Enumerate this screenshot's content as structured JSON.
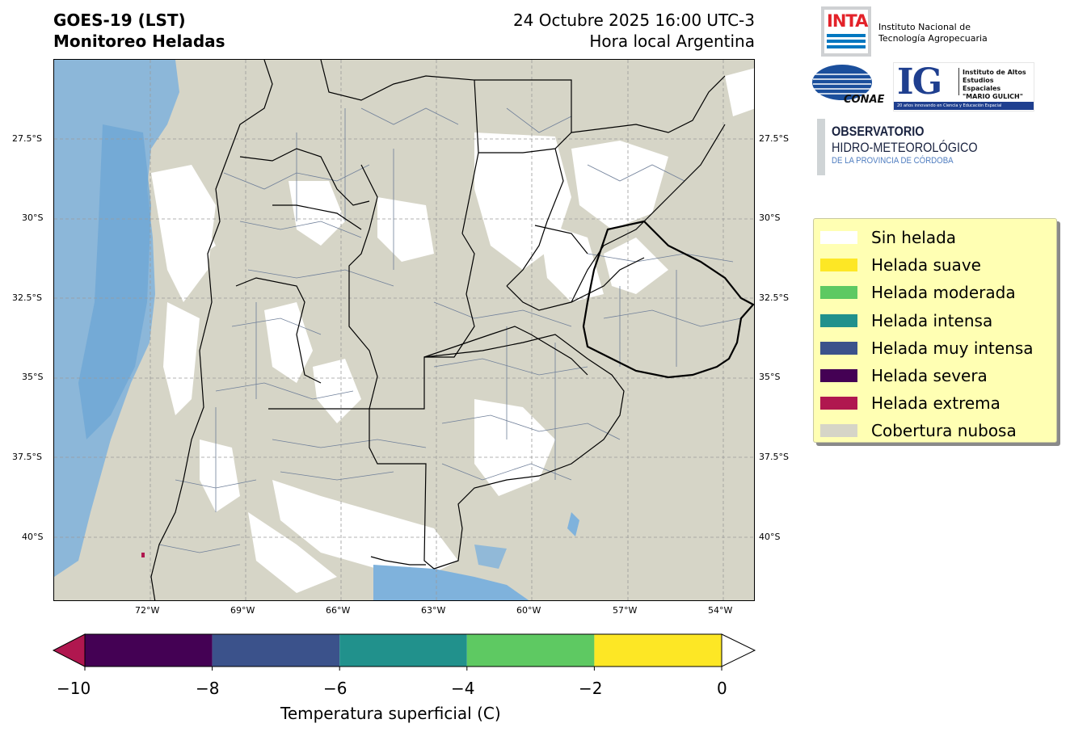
{
  "header": {
    "title_line1": "GOES-19 (LST)",
    "title_line2": "Monitoreo Heladas",
    "date_line": "24 Octubre 2025 16:00 UTC-3",
    "local_line": "Hora local Argentina"
  },
  "map": {
    "lat_ticks": [
      "27.5°S",
      "30°S",
      "32.5°S",
      "35°S",
      "37.5°S",
      "40°S"
    ],
    "lon_ticks": [
      "72°W",
      "69°W",
      "66°W",
      "63°W",
      "60°W",
      "57°W",
      "54°W"
    ],
    "colors": {
      "cloud": "#d6d5c7",
      "no_frost": "#ffffff",
      "water": "#7fb2dc",
      "border": "#000000",
      "department": "#6f7f99"
    }
  },
  "logos": {
    "inta_abbr": "INTA",
    "inta_name_line1": "Instituto Nacional de",
    "inta_name_line2": "Tecnología Agropecuaria",
    "conae": "CONAE",
    "ig_abbr": "IG",
    "ig_line1": "Instituto de Altos",
    "ig_line2": "Estudios Espaciales",
    "ig_line3": "\"MARIO GULICH\"",
    "ig_tagline": "20 años innovando en Ciencia y Educación Espacial",
    "obs_line1": "OBSERVATORIO",
    "obs_line2": "HIDRO-METEOROLÓGICO",
    "obs_line3": "DE LA PROVINCIA DE CÓRDOBA"
  },
  "legend": {
    "items": [
      {
        "label": "Sin helada",
        "color": "#ffffff"
      },
      {
        "label": "Helada suave",
        "color": "#fde725"
      },
      {
        "label": "Helada moderada",
        "color": "#5ec962"
      },
      {
        "label": "Helada intensa",
        "color": "#21918c"
      },
      {
        "label": "Helada muy intensa",
        "color": "#3b528b"
      },
      {
        "label": "Helada severa",
        "color": "#440154"
      },
      {
        "label": "Helada extrema",
        "color": "#b0174f"
      },
      {
        "label": "Cobertura nubosa",
        "color": "#d6d5c7"
      }
    ]
  },
  "colorbar": {
    "label": "Temperatura superficial (C)",
    "ticks": [
      "−10",
      "−8",
      "−6",
      "−4",
      "−2",
      "0"
    ],
    "bins": [
      {
        "from": -10,
        "to": -8,
        "color": "#440154"
      },
      {
        "from": -8,
        "to": -6,
        "color": "#3b528b"
      },
      {
        "from": -6,
        "to": -4,
        "color": "#21918c"
      },
      {
        "from": -4,
        "to": -2,
        "color": "#5ec962"
      },
      {
        "from": -2,
        "to": 0,
        "color": "#fde725"
      }
    ],
    "under_color": "#b0174f",
    "over_color": "#ffffff"
  }
}
